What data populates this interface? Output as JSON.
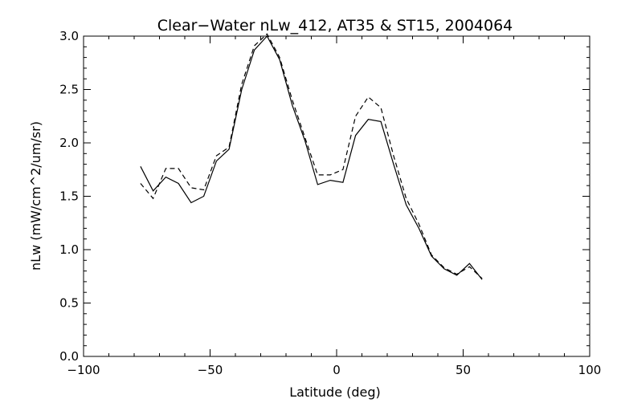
{
  "chart_data": {
    "type": "line",
    "title": "Clear−Water nLw_412, AT35 & ST15, 2004064",
    "xlabel": "Latitude (deg)",
    "ylabel": "nLw (mW/cm^2/um/sr)",
    "xlim": [
      -100,
      100
    ],
    "ylim": [
      0.0,
      3.0
    ],
    "x_ticks": [
      -100,
      -50,
      0,
      50,
      100
    ],
    "x_tick_labels": [
      "−100",
      "−50",
      "0",
      "50",
      "100"
    ],
    "y_ticks": [
      0.0,
      0.5,
      1.0,
      1.5,
      2.0,
      2.5,
      3.0
    ],
    "y_tick_labels": [
      "0.0",
      "0.5",
      "1.0",
      "1.5",
      "2.0",
      "2.5",
      "3.0"
    ],
    "grid": false,
    "legend": "none",
    "series": [
      {
        "style": "solid",
        "x": [
          -77.5,
          -72.5,
          -67.5,
          -62.5,
          -57.5,
          -52.5,
          -47.5,
          -42.5,
          -37.5,
          -32.5,
          -27.5,
          -22.5,
          -17.5,
          -12.5,
          -7.5,
          -2.5,
          2.5,
          7.5,
          12.5,
          17.5,
          22.5,
          27.5,
          32.5,
          37.5,
          42.5,
          47.5,
          52.5,
          57.5
        ],
        "y": [
          1.78,
          1.55,
          1.68,
          1.62,
          1.44,
          1.5,
          1.83,
          1.94,
          2.5,
          2.87,
          3.0,
          2.78,
          2.35,
          2.02,
          1.61,
          1.65,
          1.63,
          2.07,
          2.22,
          2.2,
          1.8,
          1.42,
          1.2,
          0.94,
          0.82,
          0.76,
          0.87,
          0.72
        ]
      },
      {
        "style": "dashed",
        "x": [
          -77.5,
          -72.5,
          -67.5,
          -62.5,
          -57.5,
          -52.5,
          -47.5,
          -42.5,
          -37.5,
          -32.5,
          -27.5,
          -22.5,
          -17.5,
          -12.5,
          -7.5,
          -2.5,
          2.5,
          7.5,
          12.5,
          17.5,
          22.5,
          27.5,
          32.5,
          37.5,
          42.5,
          47.5,
          52.5,
          57.5
        ],
        "y": [
          1.62,
          1.48,
          1.76,
          1.76,
          1.58,
          1.56,
          1.88,
          1.96,
          2.55,
          2.91,
          3.02,
          2.8,
          2.4,
          2.05,
          1.7,
          1.7,
          1.75,
          2.25,
          2.43,
          2.33,
          1.88,
          1.48,
          1.24,
          0.95,
          0.83,
          0.77,
          0.84,
          0.73
        ]
      }
    ]
  }
}
